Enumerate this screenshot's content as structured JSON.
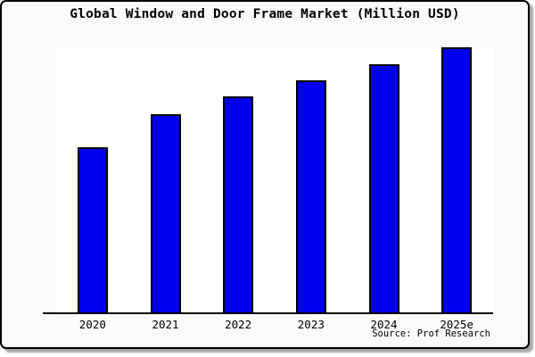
{
  "chart_data": {
    "type": "bar",
    "title": "Global Window and Door Frame Market (Million USD)",
    "categories": [
      "2020",
      "2021",
      "2022",
      "2023",
      "2024",
      "2025e"
    ],
    "values": [
      62.5,
      74.9,
      81.6,
      87.6,
      93.6,
      100
    ],
    "values_note": "relative scale, 2025e bar = 100; no y-axis scale is shown in the image",
    "xlabel": "",
    "ylabel": "",
    "ylim": [
      0,
      100
    ],
    "grid": false,
    "legend": null,
    "bar_color": "#0000ee",
    "bar_border_color": "#000000",
    "plot_background": "#ffffff",
    "card_background": "#fafafa",
    "source": "Source: Prof Research"
  }
}
